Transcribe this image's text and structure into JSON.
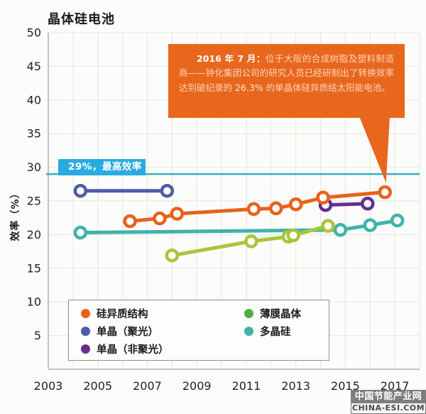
{
  "watermark": {
    "line1": "中国节能产业网",
    "line2": "CHINA-ESI.COM"
  },
  "colors": {
    "background": "#fcfcfa",
    "grid": "#e5e5e0",
    "axis": "#b0b0ac",
    "annotation_bg": "#e8671c",
    "reference_label_bg": "#29abe2",
    "reference_line": "#3aaebd"
  },
  "chart_data": {
    "type": "line",
    "title": "晶体硅电池",
    "xlabel": "",
    "ylabel": "效率（%）",
    "xlim": [
      2003,
      2018
    ],
    "ylim": [
      0,
      50
    ],
    "grid": true,
    "x_ticks": [
      2003,
      2005,
      2007,
      2009,
      2011,
      2013,
      2015,
      2017
    ],
    "y_ticks": [
      5,
      10,
      15,
      20,
      25,
      30,
      35,
      40,
      45,
      50
    ],
    "legend_position": "bottom-left",
    "reference_line": {
      "value": 29,
      "label": "29%，最高效率",
      "label_bg": "#29abe2",
      "line_color": "#3aaebd"
    },
    "annotation": {
      "bg": "#e8671c",
      "lead": "2016 年 7 月：",
      "body_before": "位于大阪的合成树脂及塑料制造商——钟化集团公司的研究人员已经研制出了转换效率达到破纪录的 ",
      "highlight": "26.3%",
      "body_after": " 的单晶体硅异质结太阳能电池。",
      "points_to": [
        2016.6,
        26.3
      ]
    },
    "series": [
      {
        "name": "硅异质结构",
        "color": "#e8621b",
        "points": [
          [
            2006.3,
            22.0
          ],
          [
            2007.5,
            22.4
          ],
          [
            2008.2,
            23.1
          ],
          [
            2011.3,
            23.8
          ],
          [
            2012.2,
            23.9
          ],
          [
            2013.0,
            24.5
          ],
          [
            2014.1,
            25.5
          ],
          [
            2016.6,
            26.3
          ]
        ]
      },
      {
        "name": "单晶（聚光）",
        "color": "#4d5ca6",
        "points": [
          [
            2004.3,
            26.5
          ],
          [
            2007.8,
            26.5
          ]
        ]
      },
      {
        "name": "单晶（非聚光）",
        "color": "#662d91",
        "points": [
          [
            2014.2,
            24.4
          ],
          [
            2015.9,
            24.6
          ]
        ]
      },
      {
        "name": "薄膜晶体",
        "color": "#a8c63c",
        "legend_color": "#54aa47",
        "points": [
          [
            2008.0,
            16.9
          ],
          [
            2011.2,
            19.0
          ],
          [
            2012.7,
            19.7
          ],
          [
            2012.9,
            19.9
          ],
          [
            2014.3,
            21.3
          ]
        ]
      },
      {
        "name": "多晶硅",
        "color": "#3fb3aa",
        "points": [
          [
            2004.3,
            20.3
          ],
          [
            2014.8,
            20.7
          ],
          [
            2016.0,
            21.4
          ],
          [
            2017.1,
            22.1
          ]
        ]
      }
    ]
  }
}
